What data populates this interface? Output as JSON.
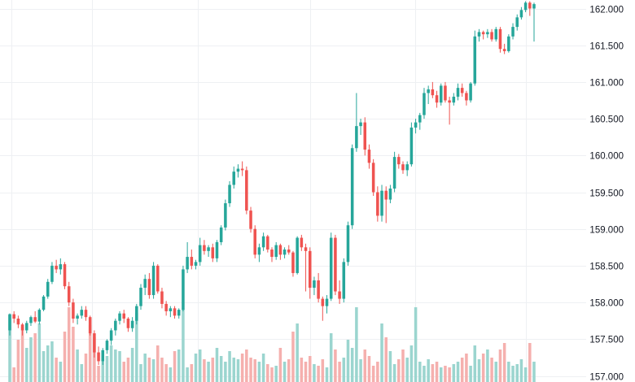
{
  "colors": {
    "up": "#26a69a",
    "down": "#ef5350",
    "up_volume": "#9bd5cf",
    "down_volume": "#f5b0ae",
    "grid": "#eef0f3",
    "axis_text": "#131722",
    "background": "#ffffff"
  },
  "chart_data": {
    "type": "candlestick",
    "price_axis_position": "right",
    "grid": true,
    "ylim": [
      156.95,
      162.12
    ],
    "y_ticks": [
      "157.000",
      "157.500",
      "158.000",
      "158.500",
      "159.000",
      "159.500",
      "160.000",
      "160.500",
      "161.000",
      "161.500",
      "162.000"
    ],
    "tick_values": [
      157.0,
      157.5,
      158.0,
      158.5,
      159.0,
      159.5,
      160.0,
      160.5,
      161.0,
      161.5,
      162.0
    ],
    "candles": [
      [
        157.62,
        157.85,
        157.55,
        157.84
      ],
      [
        157.84,
        157.88,
        157.72,
        157.78
      ],
      [
        157.78,
        157.82,
        157.65,
        157.7
      ],
      [
        157.7,
        157.72,
        157.55,
        157.62
      ],
      [
        157.62,
        157.75,
        157.58,
        157.72
      ],
      [
        157.72,
        157.82,
        157.68,
        157.8
      ],
      [
        157.8,
        157.88,
        157.72,
        157.74
      ],
      [
        157.74,
        157.92,
        157.7,
        157.9
      ],
      [
        157.9,
        158.1,
        157.88,
        158.08
      ],
      [
        158.08,
        158.32,
        158.05,
        158.28
      ],
      [
        158.28,
        158.55,
        158.25,
        158.5
      ],
      [
        158.5,
        158.58,
        158.4,
        158.45
      ],
      [
        158.45,
        158.6,
        158.38,
        158.52
      ],
      [
        158.52,
        158.55,
        158.18,
        158.22
      ],
      [
        158.22,
        158.28,
        157.95,
        158.0
      ],
      [
        158.0,
        158.05,
        157.72,
        157.78
      ],
      [
        157.78,
        157.85,
        157.7,
        157.82
      ],
      [
        157.82,
        157.95,
        157.78,
        157.9
      ],
      [
        157.9,
        157.95,
        157.75,
        157.8
      ],
      [
        157.8,
        157.82,
        157.55,
        157.58
      ],
      [
        157.58,
        157.62,
        157.25,
        157.32
      ],
      [
        157.32,
        157.4,
        157.15,
        157.2
      ],
      [
        157.2,
        157.38,
        157.15,
        157.35
      ],
      [
        157.35,
        157.5,
        157.3,
        157.48
      ],
      [
        157.48,
        157.65,
        157.42,
        157.62
      ],
      [
        157.62,
        157.78,
        157.55,
        157.75
      ],
      [
        157.75,
        157.88,
        157.7,
        157.85
      ],
      [
        157.85,
        157.9,
        157.72,
        157.78
      ],
      [
        157.78,
        157.8,
        157.6,
        157.65
      ],
      [
        157.65,
        157.8,
        157.6,
        157.75
      ],
      [
        157.75,
        157.98,
        157.7,
        157.95
      ],
      [
        157.95,
        158.25,
        157.9,
        158.2
      ],
      [
        158.2,
        158.38,
        158.1,
        158.32
      ],
      [
        158.32,
        158.4,
        158.05,
        158.1
      ],
      [
        158.1,
        158.55,
        158.05,
        158.5
      ],
      [
        158.5,
        158.52,
        158.12,
        158.15
      ],
      [
        158.15,
        158.2,
        157.92,
        157.98
      ],
      [
        157.98,
        158.02,
        157.82,
        157.88
      ],
      [
        157.88,
        157.95,
        157.8,
        157.92
      ],
      [
        157.92,
        157.95,
        157.78,
        157.82
      ],
      [
        157.82,
        157.92,
        157.78,
        157.9
      ],
      [
        157.9,
        158.5,
        157.88,
        158.45
      ],
      [
        158.45,
        158.82,
        158.4,
        158.62
      ],
      [
        158.62,
        158.72,
        158.45,
        158.5
      ],
      [
        158.5,
        158.58,
        158.45,
        158.55
      ],
      [
        158.55,
        158.88,
        158.5,
        158.78
      ],
      [
        158.78,
        158.85,
        158.65,
        158.7
      ],
      [
        158.7,
        158.78,
        158.62,
        158.75
      ],
      [
        158.75,
        158.8,
        158.55,
        158.6
      ],
      [
        158.6,
        158.85,
        158.55,
        158.82
      ],
      [
        158.82,
        159.05,
        158.78,
        159.02
      ],
      [
        159.02,
        159.4,
        158.98,
        159.35
      ],
      [
        159.35,
        159.65,
        159.3,
        159.6
      ],
      [
        159.6,
        159.85,
        159.55,
        159.78
      ],
      [
        159.78,
        159.88,
        159.7,
        159.82
      ],
      [
        159.82,
        159.92,
        159.72,
        159.8
      ],
      [
        159.8,
        159.85,
        159.2,
        159.25
      ],
      [
        159.25,
        159.3,
        158.95,
        159.0
      ],
      [
        159.0,
        159.05,
        158.6,
        158.65
      ],
      [
        158.65,
        158.8,
        158.55,
        158.75
      ],
      [
        158.75,
        158.95,
        158.7,
        158.9
      ],
      [
        158.9,
        158.92,
        158.68,
        158.72
      ],
      [
        158.72,
        158.75,
        158.55,
        158.62
      ],
      [
        158.62,
        158.82,
        158.58,
        158.78
      ],
      [
        158.78,
        158.8,
        158.58,
        158.65
      ],
      [
        158.65,
        158.75,
        158.6,
        158.72
      ],
      [
        158.72,
        158.78,
        158.65,
        158.68
      ],
      [
        158.68,
        158.7,
        158.35,
        158.4
      ],
      [
        158.4,
        158.9,
        158.38,
        158.88
      ],
      [
        158.88,
        158.92,
        158.7,
        158.75
      ],
      [
        158.75,
        158.8,
        158.15,
        158.7
      ],
      [
        158.7,
        158.75,
        158.05,
        158.2
      ],
      [
        158.2,
        158.35,
        158.1,
        158.3
      ],
      [
        158.3,
        158.4,
        158.0,
        158.05
      ],
      [
        158.05,
        158.08,
        157.75,
        157.95
      ],
      [
        157.95,
        158.1,
        157.85,
        158.05
      ],
      [
        158.05,
        158.95,
        158.02,
        158.88
      ],
      [
        158.88,
        158.92,
        158.1,
        158.15
      ],
      [
        158.15,
        158.3,
        157.98,
        158.05
      ],
      [
        158.05,
        158.6,
        158.0,
        158.55
      ],
      [
        158.55,
        159.1,
        158.5,
        159.05
      ],
      [
        159.05,
        160.15,
        159.0,
        160.1
      ],
      [
        160.1,
        160.85,
        160.05,
        160.4
      ],
      [
        160.4,
        160.5,
        160.28,
        160.45
      ],
      [
        160.45,
        160.52,
        160.0,
        160.08
      ],
      [
        160.08,
        160.15,
        159.82,
        159.9
      ],
      [
        159.9,
        159.95,
        159.45,
        159.5
      ],
      [
        159.5,
        159.58,
        159.1,
        159.18
      ],
      [
        159.18,
        159.6,
        159.1,
        159.52
      ],
      [
        159.52,
        159.58,
        159.08,
        159.4
      ],
      [
        159.4,
        159.6,
        159.35,
        159.55
      ],
      [
        159.55,
        160.05,
        159.5,
        159.98
      ],
      [
        159.98,
        160.02,
        159.82,
        159.88
      ],
      [
        159.88,
        159.92,
        159.75,
        159.8
      ],
      [
        159.8,
        159.92,
        159.72,
        159.88
      ],
      [
        159.88,
        160.45,
        159.85,
        160.38
      ],
      [
        160.38,
        160.5,
        160.3,
        160.45
      ],
      [
        160.45,
        160.58,
        160.35,
        160.55
      ],
      [
        160.55,
        160.92,
        160.5,
        160.85
      ],
      [
        160.85,
        160.95,
        160.7,
        160.9
      ],
      [
        160.9,
        161.0,
        160.78,
        160.82
      ],
      [
        160.82,
        160.88,
        160.65,
        160.72
      ],
      [
        160.72,
        160.98,
        160.68,
        160.95
      ],
      [
        160.95,
        161.0,
        160.72,
        160.75
      ],
      [
        160.75,
        160.8,
        160.42,
        160.72
      ],
      [
        160.72,
        160.85,
        160.68,
        160.8
      ],
      [
        160.8,
        160.98,
        160.75,
        160.92
      ],
      [
        160.92,
        160.98,
        160.8,
        160.85
      ],
      [
        160.85,
        160.88,
        160.68,
        160.75
      ],
      [
        160.75,
        161.0,
        160.72,
        160.98
      ],
      [
        160.98,
        161.7,
        160.95,
        161.62
      ],
      [
        161.62,
        161.72,
        161.55,
        161.68
      ],
      [
        161.68,
        161.7,
        161.58,
        161.65
      ],
      [
        161.65,
        161.72,
        161.6,
        161.68
      ],
      [
        161.68,
        161.72,
        161.55,
        161.58
      ],
      [
        161.58,
        161.75,
        161.55,
        161.72
      ],
      [
        161.72,
        161.75,
        161.4,
        161.45
      ],
      [
        161.45,
        161.52,
        161.38,
        161.42
      ],
      [
        161.42,
        161.65,
        161.4,
        161.62
      ],
      [
        161.62,
        161.8,
        161.58,
        161.75
      ],
      [
        161.75,
        161.92,
        161.7,
        161.88
      ],
      [
        161.88,
        162.02,
        161.85,
        161.98
      ],
      [
        161.98,
        162.1,
        161.95,
        162.08
      ],
      [
        162.08,
        162.1,
        161.9,
        162.0
      ],
      [
        162.0,
        162.08,
        161.55,
        162.06
      ]
    ],
    "volumes": [
      0.82,
      0.18,
      0.52,
      0.68,
      0.42,
      0.55,
      0.6,
      0.72,
      0.38,
      0.45,
      0.5,
      0.3,
      0.25,
      0.62,
      0.92,
      0.68,
      0.4,
      0.22,
      0.35,
      0.7,
      0.55,
      0.2,
      0.28,
      0.32,
      0.45,
      0.4,
      0.38,
      0.25,
      0.3,
      0.42,
      0.85,
      0.22,
      0.35,
      0.3,
      0.28,
      0.45,
      0.3,
      0.22,
      0.18,
      0.38,
      0.4,
      0.9,
      0.18,
      0.22,
      0.35,
      0.4,
      0.28,
      0.25,
      0.3,
      0.42,
      0.32,
      0.25,
      0.38,
      0.3,
      0.28,
      0.35,
      0.4,
      0.3,
      0.28,
      0.25,
      0.35,
      0.22,
      0.18,
      0.2,
      0.42,
      0.25,
      0.28,
      0.62,
      0.72,
      0.3,
      0.25,
      0.32,
      0.22,
      0.2,
      0.28,
      0.18,
      0.6,
      0.4,
      0.25,
      0.3,
      0.52,
      0.42,
      0.92,
      0.28,
      0.4,
      0.32,
      0.2,
      0.25,
      0.72,
      0.55,
      0.38,
      0.22,
      0.28,
      0.4,
      0.3,
      0.45,
      0.92,
      0.25,
      0.2,
      0.28,
      0.22,
      0.25,
      0.18,
      0.2,
      0.18,
      0.22,
      0.25,
      0.3,
      0.35,
      0.2,
      0.45,
      0.28,
      0.35,
      0.4,
      0.3,
      0.25,
      0.4,
      0.48,
      0.25,
      0.2,
      0.22,
      0.28,
      0.18,
      0.48,
      0.25
    ]
  }
}
